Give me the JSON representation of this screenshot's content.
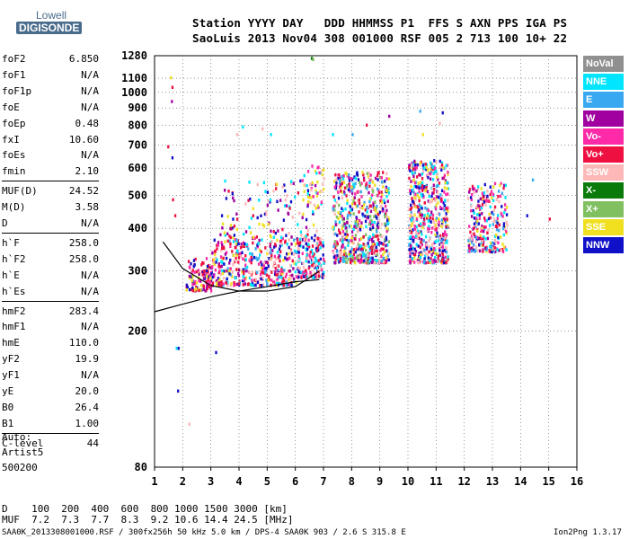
{
  "logo": {
    "line1": "Lowell",
    "line2": "DIGISONDE"
  },
  "header": {
    "line1": "Station YYYY DAY   DDD HHMMSS P1  FFS S AXN PPS IGA PS",
    "line2": "SaoLuis 2013 Nov04 308 001000 RSF 005 2 713 100 10+ 22"
  },
  "params": [
    {
      "name": "foF2",
      "value": "6.850"
    },
    {
      "name": "foF1",
      "value": "N/A"
    },
    {
      "name": "foF1p",
      "value": "N/A"
    },
    {
      "name": "foE",
      "value": "N/A"
    },
    {
      "name": "foEp",
      "value": "0.48"
    },
    {
      "name": "fxI",
      "value": "10.60"
    },
    {
      "name": "foEs",
      "value": "N/A"
    },
    {
      "name": "fmin",
      "value": "2.10"
    },
    {
      "name": "MUF(D)",
      "value": "24.52"
    },
    {
      "name": "M(D)",
      "value": "3.58"
    },
    {
      "name": "D",
      "value": "N/A"
    },
    {
      "name": "h`F",
      "value": "258.0"
    },
    {
      "name": "h`F2",
      "value": "258.0"
    },
    {
      "name": "h`E",
      "value": "N/A"
    },
    {
      "name": "h`Es",
      "value": "N/A"
    },
    {
      "name": "hmF2",
      "value": "283.4"
    },
    {
      "name": "hmF1",
      "value": "N/A"
    },
    {
      "name": "hmE",
      "value": "110.0"
    },
    {
      "name": "yF2",
      "value": "19.9"
    },
    {
      "name": "yF1",
      "value": "N/A"
    },
    {
      "name": "yE",
      "value": "20.0"
    },
    {
      "name": "B0",
      "value": "26.4"
    },
    {
      "name": "B1",
      "value": "1.00"
    },
    {
      "name": "C-level",
      "value": "44"
    }
  ],
  "autoscale": {
    "line1": "Auto:",
    "line2": "Artist5",
    "line3": "500200"
  },
  "legend": [
    {
      "label": "NoVal",
      "bg": "#909090",
      "fg": "#ffffff"
    },
    {
      "label": "NNE",
      "bg": "#00e5ff",
      "fg": "#ffffff"
    },
    {
      "label": "E",
      "bg": "#3aa8f0",
      "fg": "#ffffff"
    },
    {
      "label": "W",
      "bg": "#a000a0",
      "fg": "#ffffff"
    },
    {
      "label": "Vo-",
      "bg": "#ff2aa8",
      "fg": "#ffffff"
    },
    {
      "label": "Vo+",
      "bg": "#ee1040",
      "fg": "#ffffff"
    },
    {
      "label": "SSW",
      "bg": "#ffb8b8",
      "fg": "#ffffff"
    },
    {
      "label": "X-",
      "bg": "#0a7a0a",
      "fg": "#ffffff"
    },
    {
      "label": "X+",
      "bg": "#80c060",
      "fg": "#ffffff"
    },
    {
      "label": "SSE",
      "bg": "#f0e020",
      "fg": "#ffffff"
    },
    {
      "label": "NNW",
      "bg": "#1010c8",
      "fg": "#ffffff"
    }
  ],
  "footer": {
    "line1": "D    100  200  400  600  800 1000 1500 3000 [km]",
    "line2": "MUF  7.2  7.3  7.7  8.3  9.2 10.6 14.4 24.5 [MHz]",
    "line3": "SAA0K_2013308001000.RSF / 300fx256h 50 kHz 5.0 km / DPS-4 SAA0K 903 / 2.6 S 315.8 E",
    "version": "Ion2Png 1.3.17"
  },
  "chart_data": {
    "type": "scatter",
    "title": "",
    "xlabel": "",
    "ylabel": "",
    "xlim": [
      1,
      16
    ],
    "ylim": [
      80,
      1280
    ],
    "y_scale": "log",
    "grid": true,
    "x_ticks": [
      "1",
      "2",
      "3",
      "4",
      "5",
      "6",
      "7",
      "8",
      "9",
      "10",
      "11",
      "12",
      "13",
      "14",
      "15",
      "16"
    ],
    "y_ticks": [
      "80",
      "200",
      "300",
      "400",
      "500",
      "600",
      "700",
      "800",
      "900",
      "1000",
      "1100",
      "1280"
    ],
    "clusters": [
      {
        "f": [
          2.1,
          3.0
        ],
        "h": [
          265,
          330
        ],
        "n": 110,
        "colors": [
          "#ee1040",
          "#ee1040",
          "#ff2aa8",
          "#a000a0",
          "#1010c8",
          "#f0e020"
        ]
      },
      {
        "f": [
          3.0,
          6.0
        ],
        "h": [
          275,
          380
        ],
        "n": 420,
        "colors": [
          "#ee1040",
          "#ee1040",
          "#ff2aa8",
          "#a000a0",
          "#1010c8",
          "#3aa8f0",
          "#00e5ff",
          "#f0e020",
          "#ffb8b8"
        ]
      },
      {
        "f": [
          3.3,
          6.8
        ],
        "h": [
          380,
          560
        ],
        "n": 130,
        "colors": [
          "#f0e020",
          "#1010c8",
          "#a000a0",
          "#ffb8b8",
          "#00e5ff",
          "#ee1040"
        ]
      },
      {
        "f": [
          6.0,
          7.0
        ],
        "h": [
          290,
          380
        ],
        "n": 180,
        "colors": [
          "#ee1040",
          "#ff2aa8",
          "#ffb8b8",
          "#1010c8",
          "#00e5ff"
        ]
      },
      {
        "f": [
          6.2,
          7.0
        ],
        "h": [
          470,
          620
        ],
        "n": 40,
        "colors": [
          "#ffb8b8",
          "#f0e020",
          "#00e5ff",
          "#ff2aa8"
        ]
      },
      {
        "f": [
          7.3,
          9.3
        ],
        "h": [
          320,
          590
        ],
        "n": 620,
        "colors": [
          "#1010c8",
          "#ee1040",
          "#ffb8b8",
          "#3aa8f0",
          "#a000a0",
          "#ff2aa8",
          "#00e5ff",
          "#f0e020",
          "#80c060"
        ]
      },
      {
        "f": [
          10.0,
          11.4
        ],
        "h": [
          320,
          640
        ],
        "n": 560,
        "colors": [
          "#1010c8",
          "#ee1040",
          "#ffb8b8",
          "#3aa8f0",
          "#a000a0",
          "#ff2aa8",
          "#00e5ff",
          "#f0e020"
        ]
      },
      {
        "f": [
          12.1,
          13.5
        ],
        "h": [
          345,
          550
        ],
        "n": 260,
        "colors": [
          "#1010c8",
          "#ee1040",
          "#ffb8b8",
          "#3aa8f0",
          "#a000a0",
          "#ff2aa8",
          "#00e5ff",
          "#f0e020"
        ]
      }
    ],
    "sparse_points": [
      {
        "f": 1.55,
        "h": 1115,
        "c": "#f0e020"
      },
      {
        "f": 1.6,
        "h": 1045,
        "c": "#ee1040"
      },
      {
        "f": 1.58,
        "h": 950,
        "c": "#a000a0"
      },
      {
        "f": 1.45,
        "h": 700,
        "c": "#ee1040"
      },
      {
        "f": 1.6,
        "h": 650,
        "c": "#1010c8"
      },
      {
        "f": 1.62,
        "h": 490,
        "c": "#ee1040"
      },
      {
        "f": 1.7,
        "h": 440,
        "c": "#ee1040"
      },
      {
        "f": 1.75,
        "h": 180,
        "c": "#00e5ff"
      },
      {
        "f": 1.82,
        "h": 180,
        "c": "#1010c8"
      },
      {
        "f": 1.8,
        "h": 135,
        "c": "#1010c8"
      },
      {
        "f": 2.2,
        "h": 108,
        "c": "#ffb8b8"
      },
      {
        "f": 3.15,
        "h": 175,
        "c": "#1010c8"
      },
      {
        "f": 6.55,
        "h": 1270,
        "c": "#0a7a0a"
      },
      {
        "f": 6.6,
        "h": 1260,
        "c": "#80c060"
      },
      {
        "f": 7.3,
        "h": 760,
        "c": "#00e5ff"
      },
      {
        "f": 8.0,
        "h": 760,
        "c": "#3aa8f0"
      },
      {
        "f": 8.5,
        "h": 810,
        "c": "#ee1040"
      },
      {
        "f": 9.3,
        "h": 860,
        "c": "#a000a0"
      },
      {
        "f": 10.4,
        "h": 890,
        "c": "#3aa8f0"
      },
      {
        "f": 11.2,
        "h": 880,
        "c": "#1010c8"
      },
      {
        "f": 11.1,
        "h": 820,
        "c": "#ffb8b8"
      },
      {
        "f": 10.5,
        "h": 760,
        "c": "#f0e020"
      },
      {
        "f": 5.1,
        "h": 760,
        "c": "#00e5ff"
      },
      {
        "f": 4.8,
        "h": 790,
        "c": "#ffb8b8"
      },
      {
        "f": 14.4,
        "h": 560,
        "c": "#3aa8f0"
      },
      {
        "f": 14.2,
        "h": 440,
        "c": "#1010c8"
      },
      {
        "f": 15.0,
        "h": 430,
        "c": "#ee1040"
      },
      {
        "f": 3.9,
        "h": 760,
        "c": "#ffb8b8"
      },
      {
        "f": 4.1,
        "h": 800,
        "c": "#00e5ff"
      }
    ],
    "profile_curve": {
      "f": [
        1.0,
        2.0,
        3.0,
        4.0,
        5.0,
        6.0,
        6.85
      ],
      "h": [
        228,
        240,
        252,
        262,
        270,
        279,
        283
      ]
    },
    "trace_curve": {
      "f": [
        1.3,
        2.0,
        3.0,
        4.0,
        5.0,
        6.0,
        6.4,
        6.85
      ],
      "h": [
        365,
        305,
        272,
        262,
        262,
        270,
        283,
        300
      ]
    }
  }
}
